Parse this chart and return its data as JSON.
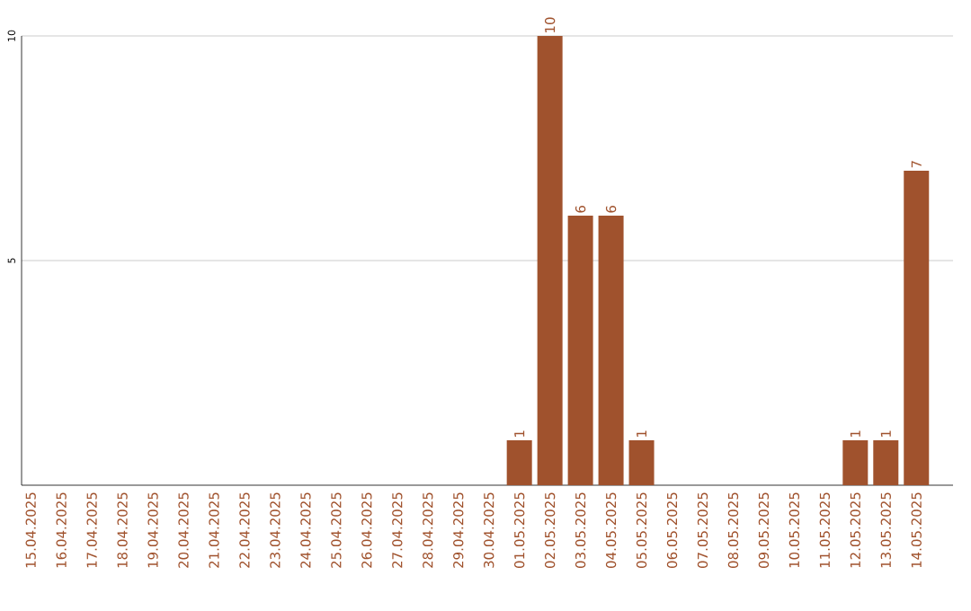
{
  "chart_data": {
    "type": "bar",
    "categories": [
      "15.04.2025",
      "16.04.2025",
      "17.04.2025",
      "18.04.2025",
      "19.04.2025",
      "20.04.2025",
      "21.04.2025",
      "22.04.2025",
      "23.04.2025",
      "24.04.2025",
      "25.04.2025",
      "26.04.2025",
      "27.04.2025",
      "28.04.2025",
      "29.04.2025",
      "30.04.2025",
      "01.05.2025",
      "02.05.2025",
      "03.05.2025",
      "04.05.2025",
      "05.05.2025",
      "06.05.2025",
      "07.05.2025",
      "08.05.2025",
      "09.05.2025",
      "10.05.2025",
      "11.05.2025",
      "12.05.2025",
      "13.05.2025",
      "14.05.2025"
    ],
    "values": [
      0,
      0,
      0,
      0,
      0,
      0,
      0,
      0,
      0,
      0,
      0,
      0,
      0,
      0,
      0,
      0,
      1,
      10,
      6,
      6,
      1,
      0,
      0,
      0,
      0,
      0,
      0,
      1,
      1,
      7
    ],
    "value_labels": [
      null,
      null,
      null,
      null,
      null,
      null,
      null,
      null,
      null,
      null,
      null,
      null,
      null,
      null,
      null,
      null,
      "1",
      "10",
      "6",
      "6",
      "1",
      null,
      null,
      null,
      null,
      null,
      null,
      "1",
      "1",
      "7"
    ],
    "color": "#a0522d",
    "ylim": [
      0,
      10
    ],
    "yticks": [
      5,
      10
    ],
    "grid": "y"
  }
}
